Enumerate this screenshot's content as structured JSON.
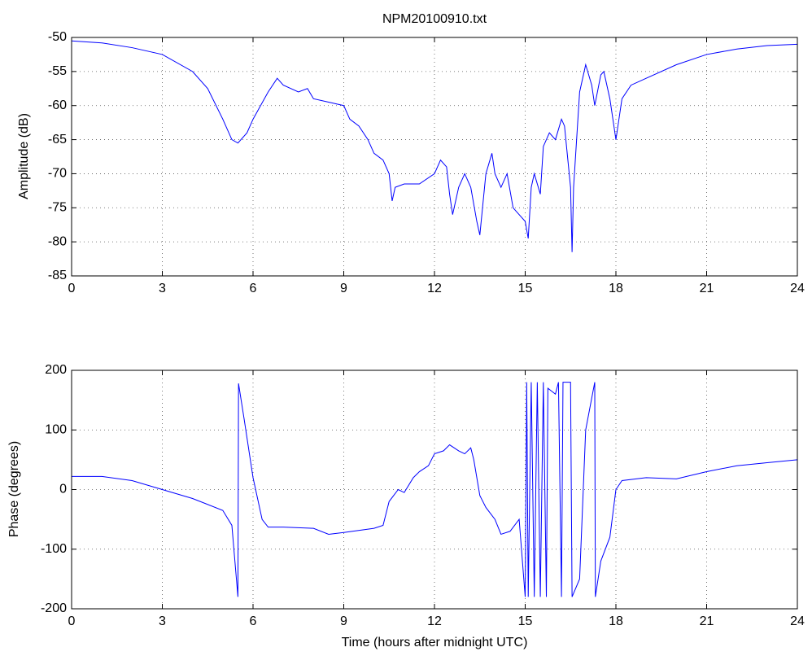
{
  "chart_data": [
    {
      "type": "line",
      "title": "NPM20100910.txt",
      "y_label": "Amplitude (dB)",
      "x": [
        0,
        1,
        2,
        3,
        4,
        4.5,
        5,
        5.3,
        5.5,
        5.8,
        6,
        6.5,
        6.8,
        7,
        7.5,
        7.8,
        8,
        8.5,
        9,
        9.2,
        9.5,
        9.8,
        10,
        10.3,
        10.5,
        10.6,
        10.7,
        11,
        11.5,
        12,
        12.2,
        12.4,
        12.5,
        12.6,
        12.8,
        13,
        13.2,
        13.4,
        13.5,
        13.7,
        13.9,
        14,
        14.2,
        14.4,
        14.6,
        14.8,
        15,
        15.1,
        15.2,
        15.3,
        15.5,
        15.6,
        15.8,
        16,
        16.2,
        16.3,
        16.5,
        16.55,
        16.6,
        16.8,
        17,
        17.2,
        17.3,
        17.5,
        17.6,
        17.8,
        18,
        18.2,
        18.5,
        19,
        20,
        21,
        22,
        23,
        24
      ],
      "values": [
        -50.5,
        -50.8,
        -51.5,
        -52.5,
        -55,
        -57.5,
        -62,
        -65,
        -65.5,
        -64,
        -62,
        -58,
        -56,
        -57,
        -58,
        -57.5,
        -59,
        -59.5,
        -60,
        -62,
        -63,
        -65,
        -67,
        -68,
        -70,
        -74,
        -72,
        -71.5,
        -71.5,
        -70,
        -68,
        -69,
        -73,
        -76,
        -72,
        -70,
        -72,
        -77,
        -79,
        -70,
        -67,
        -70,
        -72,
        -70,
        -75,
        -76,
        -77,
        -79.5,
        -72,
        -70,
        -73,
        -66,
        -64,
        -65,
        -62,
        -63,
        -72,
        -81.5,
        -72,
        -58,
        -54,
        -57,
        -60,
        -55.5,
        -55,
        -59,
        -65,
        -59,
        -57,
        -56,
        -54,
        -52.5,
        -51.7,
        -51.2,
        -51
      ],
      "color": "#0000ff",
      "xlim": [
        0,
        24
      ],
      "xticks": [
        0,
        3,
        6,
        9,
        12,
        15,
        18,
        21,
        24
      ],
      "ylim": [
        -85,
        -50
      ],
      "yticks": [
        -85,
        -80,
        -75,
        -70,
        -65,
        -60,
        -55,
        -50
      ],
      "grid": true
    },
    {
      "type": "line",
      "x_label": "Time (hours after midnight UTC)",
      "y_label": "Phase (degrees)",
      "x": [
        0,
        1,
        2,
        3,
        4,
        5,
        5.3,
        5.5,
        5.52,
        5.7,
        6,
        6.3,
        6.5,
        7,
        8,
        8.5,
        9,
        10,
        10.3,
        10.5,
        10.8,
        11,
        11.3,
        11.5,
        11.8,
        12,
        12.3,
        12.5,
        12.8,
        13,
        13.2,
        13.3,
        13.5,
        13.7,
        14,
        14.2,
        14.5,
        14.8,
        15,
        15.05,
        15.1,
        15.2,
        15.3,
        15.4,
        15.5,
        15.6,
        15.7,
        15.75,
        16,
        16.1,
        16.2,
        16.25,
        16.5,
        16.55,
        16.8,
        17,
        17.3,
        17.32,
        17.5,
        17.8,
        18,
        18.2,
        19,
        20,
        21,
        22,
        23,
        24
      ],
      "values": [
        22,
        22,
        15,
        0,
        -15,
        -35,
        -60,
        -180,
        178,
        120,
        20,
        -50,
        -63,
        -63,
        -65,
        -75,
        -72,
        -65,
        -60,
        -20,
        0,
        -5,
        20,
        30,
        40,
        60,
        65,
        75,
        65,
        60,
        70,
        50,
        -10,
        -30,
        -50,
        -75,
        -70,
        -50,
        -180,
        180,
        -180,
        180,
        -180,
        180,
        -180,
        180,
        -180,
        170,
        160,
        180,
        -180,
        180,
        180,
        -180,
        -150,
        100,
        180,
        -180,
        -120,
        -80,
        0,
        15,
        20,
        18,
        30,
        40,
        45,
        50
      ],
      "color": "#0000ff",
      "xlim": [
        0,
        24
      ],
      "xticks": [
        0,
        3,
        6,
        9,
        12,
        15,
        18,
        21,
        24
      ],
      "ylim": [
        -200,
        200
      ],
      "yticks": [
        -200,
        -100,
        0,
        100,
        200
      ],
      "grid": true
    }
  ]
}
